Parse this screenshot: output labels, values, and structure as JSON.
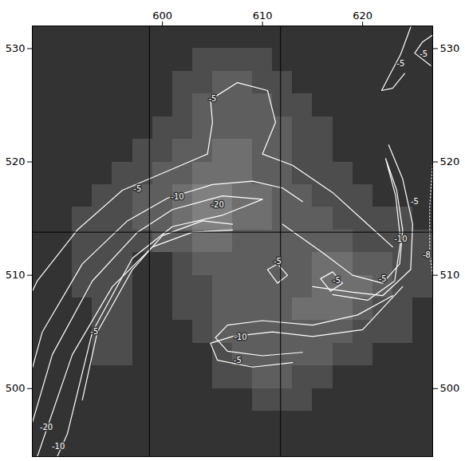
{
  "chart_data": {
    "type": "heatmap",
    "xlim": [
      587,
      627
    ],
    "ylim": [
      494,
      532
    ],
    "xticks": [
      600,
      610,
      620
    ],
    "yticks": [
      500,
      510,
      520,
      530
    ],
    "cells": {
      "x0": 587,
      "y0": 494,
      "step": 2,
      "values": [
        [
          0,
          0,
          0,
          0,
          0,
          0,
          0,
          0,
          0,
          0,
          0,
          0,
          0,
          0,
          0,
          0,
          0,
          0,
          0,
          0
        ],
        [
          0,
          0,
          0,
          0,
          0,
          0,
          0,
          0,
          0,
          0,
          0,
          0,
          0,
          0,
          0,
          0,
          0,
          0,
          0,
          0
        ],
        [
          0,
          0,
          0,
          0,
          0,
          0,
          0,
          0,
          0,
          0,
          0,
          1,
          1,
          1,
          0,
          0,
          0,
          0,
          0,
          0
        ],
        [
          0,
          0,
          0,
          0,
          0,
          0,
          0,
          0,
          0,
          1,
          1,
          2,
          2,
          1,
          1,
          0,
          0,
          0,
          0,
          0
        ],
        [
          0,
          0,
          0,
          1,
          1,
          0,
          0,
          0,
          0,
          1,
          2,
          2,
          2,
          2,
          2,
          1,
          1,
          0,
          0,
          0
        ],
        [
          0,
          0,
          0,
          1,
          1,
          0,
          0,
          0,
          1,
          2,
          2,
          2,
          2,
          2,
          2,
          2,
          1,
          1,
          1,
          0
        ],
        [
          0,
          0,
          0,
          1,
          1,
          0,
          0,
          1,
          1,
          2,
          2,
          2,
          2,
          3,
          3,
          3,
          2,
          1,
          1,
          0
        ],
        [
          0,
          0,
          1,
          1,
          1,
          0,
          0,
          1,
          1,
          2,
          2,
          2,
          2,
          2,
          3,
          3,
          3,
          2,
          1,
          1
        ],
        [
          0,
          0,
          1,
          1,
          1,
          0,
          0,
          1,
          2,
          2,
          2,
          2,
          2,
          2,
          3,
          3,
          2,
          2,
          1,
          1
        ],
        [
          0,
          0,
          1,
          1,
          1,
          1,
          2,
          2,
          3,
          3,
          2,
          2,
          2,
          2,
          2,
          2,
          1,
          1,
          1,
          1
        ],
        [
          0,
          0,
          1,
          1,
          1,
          2,
          2,
          3,
          4,
          4,
          3,
          3,
          2,
          2,
          2,
          1,
          1,
          1,
          1,
          0
        ],
        [
          0,
          0,
          0,
          1,
          1,
          2,
          2,
          3,
          4,
          4,
          3,
          3,
          2,
          2,
          1,
          1,
          1,
          0,
          0,
          0
        ],
        [
          0,
          0,
          0,
          0,
          1,
          1,
          2,
          2,
          3,
          3,
          3,
          2,
          2,
          1,
          1,
          1,
          0,
          0,
          0,
          0
        ],
        [
          0,
          0,
          0,
          0,
          0,
          1,
          1,
          2,
          2,
          3,
          3,
          2,
          2,
          1,
          1,
          0,
          0,
          0,
          0,
          0
        ],
        [
          0,
          0,
          0,
          0,
          0,
          0,
          1,
          1,
          2,
          2,
          2,
          2,
          2,
          1,
          1,
          0,
          0,
          0,
          0,
          0
        ],
        [
          0,
          0,
          0,
          0,
          0,
          0,
          0,
          1,
          2,
          2,
          2,
          2,
          1,
          1,
          0,
          0,
          0,
          0,
          0,
          0
        ],
        [
          0,
          0,
          0,
          0,
          0,
          0,
          0,
          1,
          1,
          2,
          2,
          1,
          1,
          0,
          0,
          0,
          0,
          0,
          0,
          0
        ],
        [
          0,
          0,
          0,
          0,
          0,
          0,
          0,
          0,
          1,
          1,
          1,
          1,
          0,
          0,
          0,
          0,
          0,
          0,
          0,
          0
        ],
        [
          0,
          0,
          0,
          0,
          0,
          0,
          0,
          0,
          0,
          0,
          0,
          0,
          0,
          0,
          0,
          0,
          0,
          0,
          0,
          0
        ]
      ]
    },
    "contours": [
      {
        "level": -5,
        "line_style": "solid",
        "points": [
          [
            585,
            505
          ],
          [
            587.5,
            509.5
          ],
          [
            591.5,
            514
          ],
          [
            596,
            517.5
          ],
          [
            600,
            519
          ],
          [
            604.5,
            520.7
          ],
          [
            605,
            523.5
          ],
          [
            604.8,
            525.5
          ],
          [
            607.5,
            527
          ],
          [
            610.5,
            526.3
          ],
          [
            611.3,
            523.5
          ],
          [
            610,
            520.7
          ],
          [
            613,
            519.7
          ],
          [
            617,
            517.3
          ],
          [
            620.5,
            514.5
          ],
          [
            623,
            512.5
          ]
        ]
      },
      {
        "level": -5,
        "line_style": "solid",
        "points": [
          [
            592,
            499
          ],
          [
            593.5,
            505
          ],
          [
            597,
            510.5
          ],
          [
            600,
            513.5
          ],
          [
            604,
            514.8
          ],
          [
            607,
            514.5
          ]
        ]
      },
      {
        "level": -10,
        "line_style": "solid",
        "points": [
          [
            585.5,
            497
          ],
          [
            588,
            505
          ],
          [
            592,
            511
          ],
          [
            596.5,
            514.8
          ],
          [
            600.5,
            516.8
          ],
          [
            605,
            518
          ],
          [
            609,
            518.3
          ],
          [
            612,
            517.7
          ],
          [
            614,
            516.5
          ]
        ]
      },
      {
        "level": -10,
        "line_style": "solid",
        "points": [
          [
            587.5,
            494
          ],
          [
            591,
            503
          ],
          [
            595,
            509
          ],
          [
            599,
            512.5
          ],
          [
            603,
            513.8
          ],
          [
            607,
            514
          ]
        ]
      },
      {
        "level": -20,
        "line_style": "solid",
        "points": [
          [
            586,
            494
          ],
          [
            589,
            503
          ],
          [
            593,
            509.5
          ],
          [
            597.5,
            513.8
          ],
          [
            601,
            515.8
          ],
          [
            606,
            517
          ],
          [
            610,
            516.7
          ],
          [
            606,
            515.3
          ],
          [
            601,
            514.3
          ],
          [
            597,
            511.5
          ],
          [
            593,
            505
          ],
          [
            590.5,
            496
          ],
          [
            589.5,
            494
          ]
        ]
      },
      {
        "level": -10,
        "line_style": "solid",
        "points": [
          [
            612,
            514.5
          ],
          [
            616,
            512
          ],
          [
            619,
            510
          ],
          [
            622,
            509.3
          ],
          [
            623.7,
            511
          ],
          [
            624,
            514
          ],
          [
            623.4,
            517.5
          ],
          [
            622.3,
            520.3
          ],
          [
            623.3,
            517
          ],
          [
            623.8,
            513
          ],
          [
            623.2,
            509.5
          ],
          [
            620.5,
            507.8
          ],
          [
            617,
            508.3
          ]
        ]
      },
      {
        "level": -5,
        "line_style": "solid",
        "points": [
          [
            615,
            509
          ],
          [
            619,
            508.5
          ],
          [
            622,
            508.2
          ],
          [
            624.8,
            510.5
          ],
          [
            625,
            514.5
          ],
          [
            624,
            518.5
          ],
          [
            622.6,
            521.5
          ]
        ]
      },
      {
        "level": -10,
        "line_style": "solid",
        "points": [
          [
            623,
            508.2
          ],
          [
            619.5,
            506.5
          ],
          [
            615,
            505.6
          ],
          [
            610,
            506
          ],
          [
            606.5,
            505.6
          ],
          [
            605.3,
            504.5
          ],
          [
            606.5,
            503.3
          ],
          [
            610,
            502.9
          ],
          [
            614,
            503.2
          ]
        ]
      },
      {
        "level": -5,
        "line_style": "solid",
        "points": [
          [
            624,
            509
          ],
          [
            620,
            505.2
          ],
          [
            615,
            504.6
          ],
          [
            611,
            505
          ],
          [
            607,
            504.6
          ],
          [
            604.8,
            504
          ],
          [
            605.5,
            502.5
          ],
          [
            609,
            501.9
          ],
          [
            613,
            502.3
          ]
        ]
      },
      {
        "level": -5,
        "line_style": "solid",
        "points": [
          [
            610.5,
            510.5
          ],
          [
            611.5,
            509.3
          ],
          [
            612.5,
            510
          ],
          [
            611.5,
            511
          ],
          [
            610.5,
            510.5
          ]
        ]
      },
      {
        "level": -5,
        "line_style": "solid",
        "points": [
          [
            615.8,
            509.7
          ],
          [
            616.8,
            508.6
          ],
          [
            618,
            509.3
          ],
          [
            617,
            510.3
          ],
          [
            615.8,
            509.7
          ]
        ]
      },
      {
        "level": -5,
        "line_style": "solid",
        "points": [
          [
            624.8,
            531.9
          ],
          [
            623.8,
            529.5
          ],
          [
            622.6,
            527.5
          ],
          [
            621.9,
            526.3
          ],
          [
            623,
            526.5
          ],
          [
            624.2,
            527.8
          ]
        ]
      },
      {
        "level": -5,
        "line_style": "solid",
        "points": [
          [
            626.8,
            528.5
          ],
          [
            625.2,
            529.6
          ],
          [
            626,
            530.6
          ],
          [
            627,
            531.2
          ]
        ]
      },
      {
        "level": -8,
        "line_style": "dotted",
        "points": [
          [
            627,
            520
          ],
          [
            626.7,
            516
          ],
          [
            626.7,
            512
          ],
          [
            627,
            510
          ]
        ]
      }
    ],
    "contour_labels": [
      {
        "text": "-5",
        "x": 597.5,
        "y": 517.6
      },
      {
        "text": "-10",
        "x": 601.5,
        "y": 516.9
      },
      {
        "text": "-20",
        "x": 605.5,
        "y": 516.2
      },
      {
        "text": "-5",
        "x": 605,
        "y": 525.6
      },
      {
        "text": "-5",
        "x": 611.5,
        "y": 511.2
      },
      {
        "text": "-5",
        "x": 617.4,
        "y": 509.5
      },
      {
        "text": "-5",
        "x": 622,
        "y": 509.7
      },
      {
        "text": "-10",
        "x": 623.8,
        "y": 513.2
      },
      {
        "text": "-5",
        "x": 625.2,
        "y": 516.5
      },
      {
        "text": "-8",
        "x": 626.4,
        "y": 511.8
      },
      {
        "text": "-10",
        "x": 607.8,
        "y": 504.5
      },
      {
        "text": "-5",
        "x": 607.5,
        "y": 502.5
      },
      {
        "text": "-5",
        "x": 623.8,
        "y": 528.7
      },
      {
        "text": "-5",
        "x": 626.1,
        "y": 529.5
      },
      {
        "text": "-20",
        "x": 588.4,
        "y": 496.6
      },
      {
        "text": "-10",
        "x": 589.6,
        "y": 494.9
      },
      {
        "text": "-5",
        "x": 593.2,
        "y": 505
      }
    ],
    "reference_lines": {
      "x": [
        598.7,
        611.8
      ],
      "y": [
        513.8
      ]
    }
  }
}
